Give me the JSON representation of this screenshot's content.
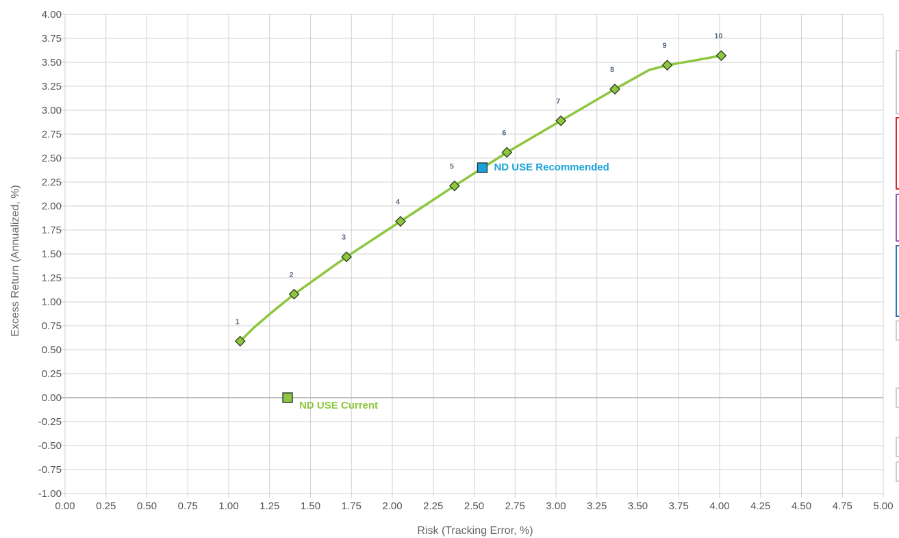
{
  "chart_data": {
    "type": "scatter",
    "xlabel": "Risk (Tracking Error, %)",
    "ylabel": "Excess Return (Annualized, %)",
    "xlim": [
      0,
      5
    ],
    "ylim": [
      -1,
      4
    ],
    "x_ticks": [
      "0.00",
      "0.25",
      "0.50",
      "0.75",
      "1.00",
      "1.25",
      "1.50",
      "1.75",
      "2.00",
      "2.25",
      "2.50",
      "2.75",
      "3.00",
      "3.25",
      "3.50",
      "3.75",
      "4.00",
      "4.25",
      "4.50",
      "4.75",
      "5.00"
    ],
    "y_ticks": [
      "4.00",
      "3.75",
      "3.50",
      "3.25",
      "3.00",
      "2.75",
      "2.50",
      "2.25",
      "2.00",
      "1.75",
      "1.50",
      "1.25",
      "1.00",
      "0.75",
      "0.50",
      "0.25",
      "0.00",
      "-0.25",
      "-0.50",
      "-0.75",
      "-1.00"
    ],
    "grid": true,
    "frontier": {
      "color": "#8dc63f",
      "points": [
        {
          "label": "1",
          "x": 1.07,
          "y": 0.59
        },
        {
          "label": "2",
          "x": 1.4,
          "y": 1.08
        },
        {
          "label": "3",
          "x": 1.72,
          "y": 1.47
        },
        {
          "label": "4",
          "x": 2.05,
          "y": 1.84
        },
        {
          "label": "5",
          "x": 2.38,
          "y": 2.21
        },
        {
          "label": "6",
          "x": 2.7,
          "y": 2.56
        },
        {
          "label": "7",
          "x": 3.03,
          "y": 2.89
        },
        {
          "label": "8",
          "x": 3.36,
          "y": 3.22
        },
        {
          "label": "9",
          "x": 3.68,
          "y": 3.47
        },
        {
          "label": "10",
          "x": 4.01,
          "y": 3.57
        }
      ],
      "curve": [
        {
          "x": 1.07,
          "y": 0.59
        },
        {
          "x": 1.16,
          "y": 0.74
        },
        {
          "x": 1.27,
          "y": 0.9
        },
        {
          "x": 1.4,
          "y": 1.08
        },
        {
          "x": 1.72,
          "y": 1.47
        },
        {
          "x": 2.05,
          "y": 1.84
        },
        {
          "x": 2.38,
          "y": 2.21
        },
        {
          "x": 2.7,
          "y": 2.56
        },
        {
          "x": 3.03,
          "y": 2.89
        },
        {
          "x": 3.36,
          "y": 3.22
        },
        {
          "x": 3.57,
          "y": 3.42
        },
        {
          "x": 3.68,
          "y": 3.47
        },
        {
          "x": 3.85,
          "y": 3.52
        },
        {
          "x": 4.01,
          "y": 3.57
        }
      ]
    },
    "annotations": [
      {
        "label": "ND USE Recommended",
        "x": 2.55,
        "y": 2.4,
        "color": "#1aa3d9"
      },
      {
        "label": "ND USE Current",
        "x": 1.36,
        "y": 0.0,
        "color": "#8dc63f"
      }
    ]
  },
  "side_panels": [
    {
      "border": "#c8c8c8"
    },
    {
      "border": "#d62728"
    },
    {
      "border": "#9b59b6"
    },
    {
      "border": "#1f77b4"
    },
    {
      "border": "#d0d0d0"
    },
    {
      "border": "#d0d0d0"
    },
    {
      "border": "#d0d0d0"
    },
    {
      "border": "#d0d0d0"
    }
  ]
}
